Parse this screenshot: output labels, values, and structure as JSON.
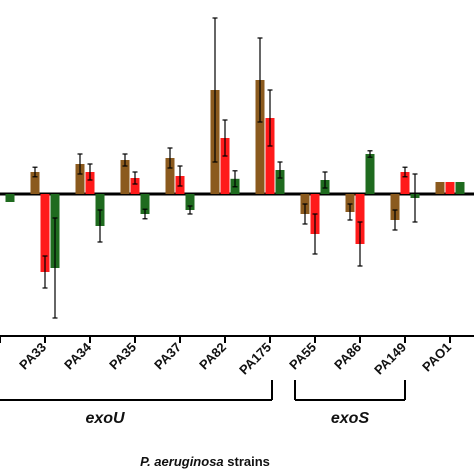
{
  "chart_data": {
    "type": "bar",
    "title": "",
    "xlabel_italic": "P. aeruginosa",
    "xlabel_rest": " strains",
    "ylabel": "",
    "ylim": [
      -3.5,
      4.5
    ],
    "categories": [
      "",
      "PA33",
      "PA34",
      "PA35",
      "PA37",
      "PA82",
      "PA175",
      "PA55",
      "PA86",
      "PA149",
      "PAO1"
    ],
    "series": [
      {
        "color": "#8B5A1E",
        "values": [
          null,
          0.55,
          0.75,
          0.85,
          0.9,
          2.6,
          2.85,
          -0.5,
          -0.45,
          -0.65,
          0.3
        ],
        "errors": [
          null,
          0.12,
          0.25,
          0.15,
          0.25,
          1.8,
          1.05,
          0.25,
          0.2,
          0.25,
          null
        ]
      },
      {
        "color": "#FF1A1A",
        "values": [
          null,
          -1.95,
          0.55,
          0.4,
          0.45,
          1.4,
          1.9,
          -1.0,
          -1.25,
          0.55,
          0.3
        ],
        "errors": [
          null,
          0.4,
          0.2,
          0.15,
          0.25,
          0.45,
          0.7,
          0.5,
          0.55,
          0.12,
          null
        ]
      },
      {
        "color": "#1F6B1F",
        "values": [
          -0.2,
          -1.85,
          -0.8,
          -0.5,
          -0.4,
          0.38,
          0.6,
          0.35,
          1.0,
          -0.1,
          0.3
        ],
        "errors": [
          0.0,
          1.25,
          0.4,
          0.12,
          0.1,
          0.2,
          0.2,
          0.2,
          0.08,
          0.6,
          null
        ]
      }
    ],
    "groups": [
      {
        "label": "exoU",
        "from": "PA33",
        "to": "PA175"
      },
      {
        "label": "exoS",
        "from": "PA55",
        "to": "PA149"
      }
    ],
    "grid": false,
    "legend": "none"
  }
}
